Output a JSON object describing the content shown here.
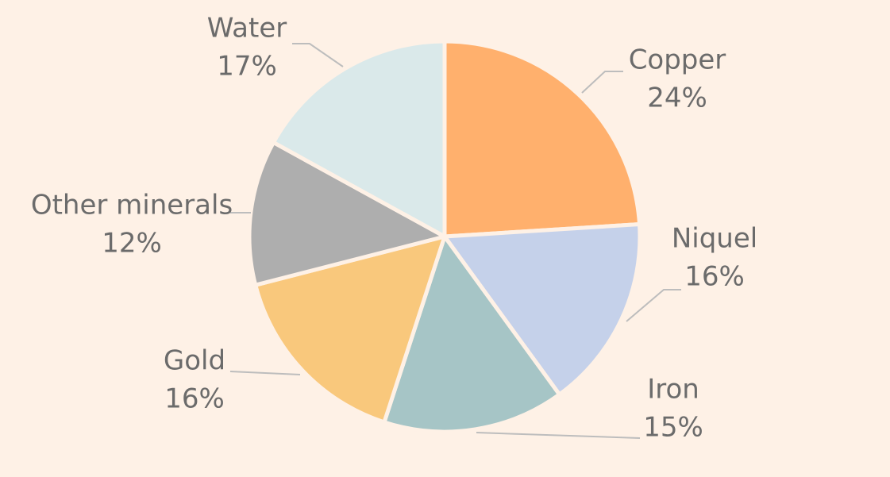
{
  "chart_data": {
    "type": "pie",
    "title": "",
    "start_angle_deg": 0,
    "direction": "clockwise",
    "legend": "none",
    "slices": [
      {
        "label": "Copper",
        "value": 24,
        "display": "24%",
        "color": "#FFB06D"
      },
      {
        "label": "Niquel",
        "value": 16,
        "display": "16%",
        "color": "#C5D1EA"
      },
      {
        "label": "Iron",
        "value": 15,
        "display": "15%",
        "color": "#A6C5C6"
      },
      {
        "label": "Gold",
        "value": 16,
        "display": "16%",
        "color": "#F9C87C"
      },
      {
        "label": "Other minerals",
        "value": 12,
        "display": "12%",
        "color": "#AEAEAE"
      },
      {
        "label": "Water",
        "value": 17,
        "display": "17%",
        "color": "#DAE9EA"
      }
    ]
  }
}
